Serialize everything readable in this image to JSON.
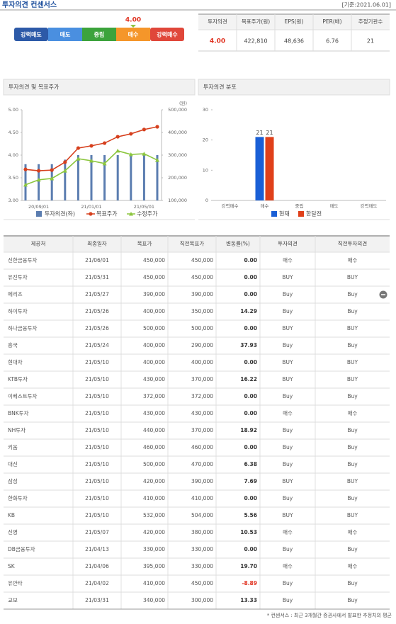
{
  "header": {
    "title": "투자의견 컨센서스",
    "date": "[기준:2021.06.01]"
  },
  "rating_scale": {
    "labels": [
      "강력매도",
      "매도",
      "중립",
      "매수",
      "강력매수"
    ],
    "colors": [
      "#2d5aa8",
      "#4a8fe0",
      "#3ca33c",
      "#f5962a",
      "#e0473a"
    ]
  },
  "summary": {
    "headers": [
      "투자의견",
      "목표주가(원)",
      "EPS(원)",
      "PER(배)",
      "추정기관수"
    ],
    "values": [
      {
        "value": 4,
        "label": "4.00"
      },
      "422,810",
      "48,636",
      "6.76",
      "21"
    ]
  },
  "chart_data": [
    {
      "type": "bar-line",
      "title": "투자의견 및 목표주가",
      "y2_unit": "(원)",
      "categories": [
        null,
        "20/09/01",
        null,
        null,
        null,
        "21/01/01",
        null,
        null,
        null,
        "21/05/01",
        null
      ],
      "series": [
        {
          "name": "투자의견(좌)",
          "type": "bar",
          "color": "#5b7db0",
          "values": [
            3.8,
            3.8,
            3.8,
            3.9,
            4,
            4,
            4,
            4,
            4,
            4,
            4
          ]
        },
        {
          "name": "목표주가",
          "type": "line",
          "axis": "y2",
          "marker": "circle",
          "color": "#d6401e",
          "values": [
            237000,
            231000,
            234000,
            269000,
            331000,
            341000,
            353000,
            381000,
            394000,
            413000,
            425000
          ]
        },
        {
          "name": "수정주가",
          "type": "line",
          "axis": "y2",
          "marker": "triangle",
          "color": "#8cc63f",
          "values": [
            169000,
            191000,
            197000,
            231000,
            284000,
            275000,
            263000,
            319000,
            303000,
            306000,
            278000
          ]
        }
      ],
      "ylim": [
        3,
        5
      ],
      "yticks": [
        {
          "value": 3,
          "label": "3.00"
        },
        {
          "value": 3.5,
          "label": "3.50"
        },
        {
          "value": 4,
          "label": "4.00"
        },
        {
          "value": 4.5,
          "label": "4.50"
        },
        {
          "value": 5,
          "label": "5.00"
        }
      ],
      "y2lim": [
        100000,
        500000
      ],
      "y2ticks": [
        {
          "value": 100000,
          "label": "100,000"
        },
        {
          "value": 200000,
          "label": "200,000"
        },
        {
          "value": 300000,
          "label": "300,000"
        },
        {
          "value": 400000,
          "label": "400,000"
        },
        {
          "value": 500000,
          "label": "500,000"
        }
      ]
    },
    {
      "type": "bar",
      "title": "투자의견 분포",
      "categories": [
        "강력매수",
        "매수",
        "중립",
        "매도",
        "강력매도"
      ],
      "series": [
        {
          "name": "현재",
          "color": "#1a5fd6",
          "values": [
            0,
            21,
            0,
            0,
            0
          ]
        },
        {
          "name": "한달전",
          "color": "#e0401a",
          "values": [
            0,
            21,
            0,
            0,
            0
          ]
        }
      ],
      "ylim": [
        0,
        30
      ],
      "yticks": [
        0,
        10,
        20,
        30
      ],
      "data_labels": true
    }
  ],
  "table": {
    "headers": [
      "제공처",
      "최종일자",
      "목표가",
      "직전목표가",
      "변동률(%)",
      "투자의견",
      "직전투자의견"
    ],
    "rows": [
      [
        "신한금융투자",
        "21/06/01",
        "450,000",
        "450,000",
        "0.00",
        "매수",
        "매수"
      ],
      [
        "유진투자",
        "21/05/31",
        "450,000",
        "450,000",
        "0.00",
        "BUY",
        "BUY"
      ],
      [
        "메리츠",
        "21/05/27",
        "390,000",
        "390,000",
        "0.00",
        "Buy",
        "Buy"
      ],
      [
        "하이투자",
        "21/05/26",
        "400,000",
        "350,000",
        "14.29",
        "Buy",
        "Buy"
      ],
      [
        "하나금융투자",
        "21/05/26",
        "500,000",
        "500,000",
        "0.00",
        "BUY",
        "BUY"
      ],
      [
        "흥국",
        "21/05/24",
        "400,000",
        "290,000",
        "37.93",
        "Buy",
        "Buy"
      ],
      [
        "현대차",
        "21/05/10",
        "400,000",
        "400,000",
        "0.00",
        "BUY",
        "BUY"
      ],
      [
        "KTB투자",
        "21/05/10",
        "430,000",
        "370,000",
        "16.22",
        "BUY",
        "BUY"
      ],
      [
        "이베스트투자",
        "21/05/10",
        "372,000",
        "372,000",
        "0.00",
        "Buy",
        "Buy"
      ],
      [
        "BNK투자",
        "21/05/10",
        "430,000",
        "430,000",
        "0.00",
        "매수",
        "매수"
      ],
      [
        "NH투자",
        "21/05/10",
        "440,000",
        "370,000",
        "18.92",
        "Buy",
        "Buy"
      ],
      [
        "키움",
        "21/05/10",
        "460,000",
        "460,000",
        "0.00",
        "Buy",
        "Buy"
      ],
      [
        "대신",
        "21/05/10",
        "500,000",
        "470,000",
        "6.38",
        "Buy",
        "Buy"
      ],
      [
        "삼성",
        "21/05/10",
        "420,000",
        "390,000",
        "7.69",
        "BUY",
        "BUY"
      ],
      [
        "한화투자",
        "21/05/10",
        "410,000",
        "410,000",
        "0.00",
        "Buy",
        "Buy"
      ],
      [
        "KB",
        "21/05/10",
        "532,000",
        "504,000",
        "5.56",
        "BUY",
        "BUY"
      ],
      [
        "신영",
        "21/05/07",
        "420,000",
        "380,000",
        "10.53",
        "매수",
        "매수"
      ],
      [
        "DB금융투자",
        "21/04/13",
        "330,000",
        "330,000",
        "0.00",
        "Buy",
        "Buy"
      ],
      [
        "SK",
        "21/04/06",
        "395,000",
        "330,000",
        "19.70",
        "매수",
        "매수"
      ],
      [
        "유안타",
        "21/04/02",
        "410,000",
        "450,000",
        "-8.89",
        "Buy",
        "Buy"
      ],
      [
        "교보",
        "21/03/31",
        "340,000",
        "300,000",
        "13.33",
        "Buy",
        "Buy"
      ]
    ]
  },
  "footnote": "* 컨센서스 : 최근 3개월간 증권사에서 발표한 추정치의 평균"
}
